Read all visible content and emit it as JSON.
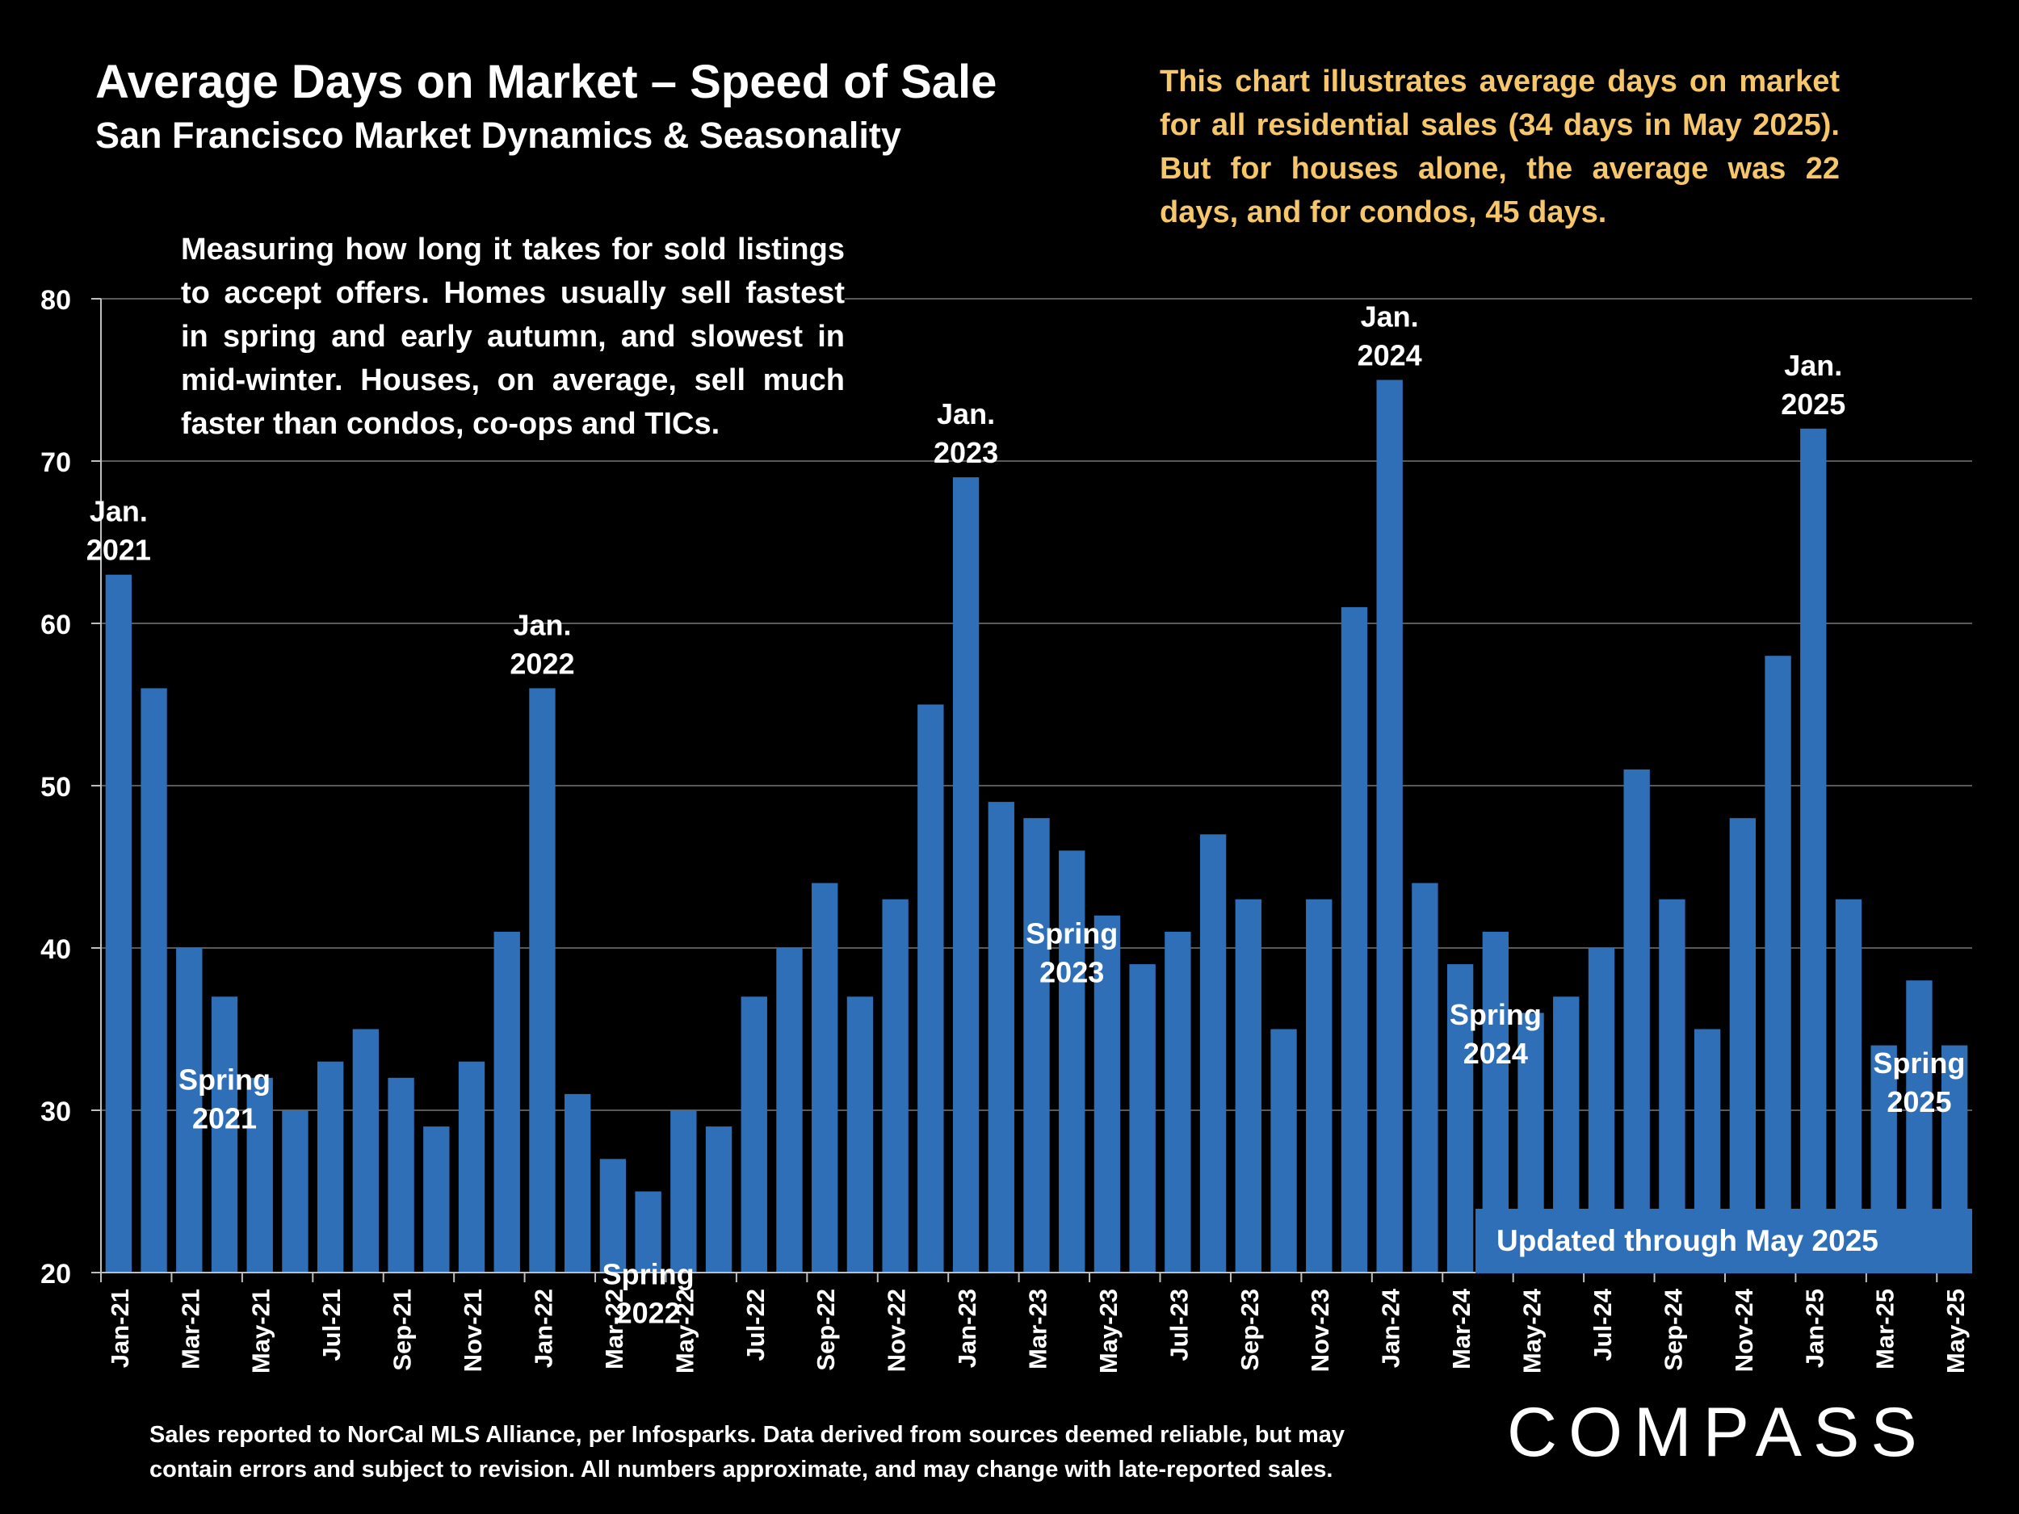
{
  "header": {
    "title": "Average Days on Market – Speed of Sale",
    "subtitle": "San Francisco Market Dynamics & Seasonality"
  },
  "note": "This chart illustrates average days on market for all residential sales (34 days in May 2025). But for houses alone, the average was 22 days, and for condos, 45 days.",
  "description": "Measuring how long it takes for sold listings to accept offers. Homes usually sell fastest in spring and early autumn, and slowest in mid-winter. Houses, on average, sell much faster than condos, co-ops and TICs.",
  "updated_label": "Updated through May 2025",
  "footer": "Sales reported to NorCal MLS Alliance, per Infosparks. Data derived from sources deemed reliable, but may contain errors and subject to revision. All numbers approximate, and may change with late-reported sales.",
  "logo": "COMPASS",
  "colors": {
    "bar": "#2e6fb8",
    "note": "#f6c66a",
    "background": "#000000",
    "grid": "#595959"
  },
  "chart_data": {
    "type": "bar",
    "title": "Average Days on Market – Speed of Sale",
    "xlabel": "",
    "ylabel": "",
    "ylim": [
      20,
      80
    ],
    "yticks": [
      20,
      30,
      40,
      50,
      60,
      70,
      80
    ],
    "grid": true,
    "categories": [
      "Jan-21",
      "Feb-21",
      "Mar-21",
      "Apr-21",
      "May-21",
      "Jun-21",
      "Jul-21",
      "Aug-21",
      "Sep-21",
      "Oct-21",
      "Nov-21",
      "Dec-21",
      "Jan-22",
      "Feb-22",
      "Mar-22",
      "Apr-22",
      "May-22",
      "Jun-22",
      "Jul-22",
      "Aug-22",
      "Sep-22",
      "Oct-22",
      "Nov-22",
      "Dec-22",
      "Jan-23",
      "Feb-23",
      "Mar-23",
      "Apr-23",
      "May-23",
      "Jun-23",
      "Jul-23",
      "Aug-23",
      "Sep-23",
      "Oct-23",
      "Nov-23",
      "Dec-23",
      "Jan-24",
      "Feb-24",
      "Mar-24",
      "Apr-24",
      "May-24",
      "Jun-24",
      "Jul-24",
      "Aug-24",
      "Sep-24",
      "Oct-24",
      "Nov-24",
      "Dec-24",
      "Jan-25",
      "Feb-25",
      "Mar-25",
      "Apr-25",
      "May-25"
    ],
    "tick_labels": [
      "Jan-21",
      "Mar-21",
      "May-21",
      "Jul-21",
      "Sep-21",
      "Nov-21",
      "Jan-22",
      "Mar-22",
      "May-22",
      "Jul-22",
      "Sep-22",
      "Nov-22",
      "Jan-23",
      "Mar-23",
      "May-23",
      "Jul-23",
      "Sep-23",
      "Nov-23",
      "Jan-24",
      "Mar-24",
      "May-24",
      "Jul-24",
      "Sep-24",
      "Nov-24",
      "Jan-25",
      "Mar-25",
      "May-25"
    ],
    "values": [
      63,
      56,
      40,
      37,
      32,
      30,
      33,
      35,
      32,
      29,
      33,
      41,
      56,
      31,
      27,
      25,
      30,
      29,
      37,
      40,
      44,
      37,
      43,
      55,
      69,
      49,
      48,
      46,
      42,
      39,
      41,
      47,
      43,
      35,
      43,
      61,
      75,
      44,
      39,
      41,
      36,
      37,
      40,
      51,
      43,
      35,
      48,
      58,
      72,
      43,
      34,
      38,
      34
    ],
    "annotations": [
      {
        "label": "Jan.\n2021",
        "category": "Jan-21"
      },
      {
        "label": "Jan.\n2022",
        "category": "Jan-22"
      },
      {
        "label": "Jan.\n2023",
        "category": "Jan-23"
      },
      {
        "label": "Jan.\n2024",
        "category": "Jan-24"
      },
      {
        "label": "Jan.\n2025",
        "category": "Jan-25"
      },
      {
        "label": "Spring\n2021",
        "category": "Apr-21"
      },
      {
        "label": "Spring\n2022",
        "category": "Apr-22"
      },
      {
        "label": "Spring\n2023",
        "category": "Apr-23"
      },
      {
        "label": "Spring\n2024",
        "category": "Apr-24"
      },
      {
        "label": "Spring\n2025",
        "category": "Apr-25"
      }
    ]
  }
}
